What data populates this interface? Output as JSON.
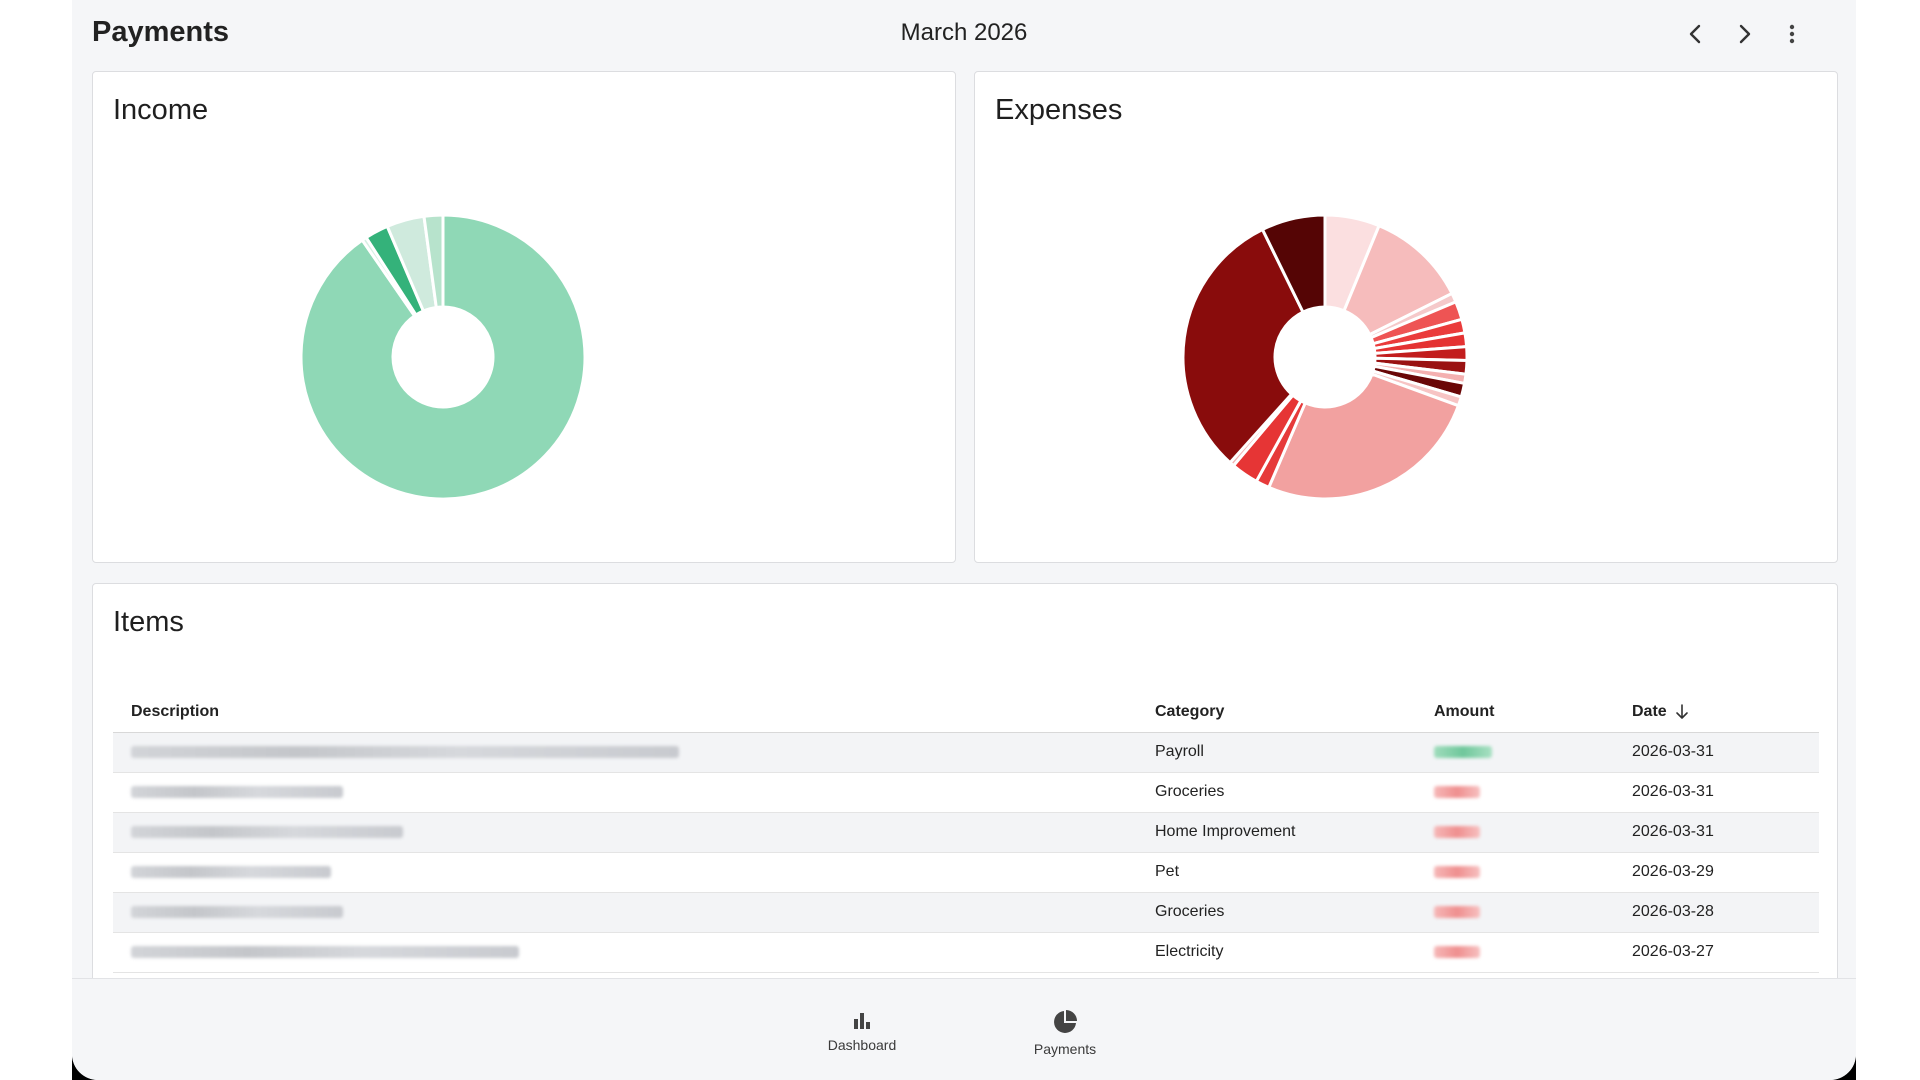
{
  "header": {
    "title": "Payments",
    "month": "March 2026",
    "prev_icon": "chevron-left-icon",
    "next_icon": "chevron-right-icon",
    "more_icon": "more-vert-icon"
  },
  "income": {
    "title": "Income",
    "chart_data": {
      "type": "pie",
      "style": "donut",
      "values": [
        84.5,
        0.5,
        2.5,
        4.0,
        2.0
      ],
      "colors": [
        "#8fd8b6",
        "#d6f0e3",
        "#34b27a",
        "#cfeadd",
        "#b7e3cc"
      ],
      "order": "counter-clockwise-from-right-side"
    }
  },
  "expenses": {
    "title": "Expenses",
    "chart_data": {
      "type": "pie",
      "style": "donut",
      "values": [
        6,
        11,
        1,
        2,
        1.5,
        1.5,
        1.5,
        1.5,
        1,
        1.5,
        1,
        25,
        1.5,
        3,
        0.5,
        30,
        7
      ],
      "colors": [
        "#fbdfe0",
        "#f6bcbc",
        "#f5c9ca",
        "#ee5454",
        "#ea3b3b",
        "#e43232",
        "#c21d1d",
        "#9a1212",
        "#f4b0b0",
        "#6a0606",
        "#f7c4c4",
        "#f2a1a0",
        "#e63a3a",
        "#e63535",
        "#f2b4b4",
        "#890c0c",
        "#550505"
      ]
    }
  },
  "items": {
    "title": "Items",
    "columns": {
      "description": "Description",
      "category": "Category",
      "amount": "Amount",
      "date": "Date"
    },
    "sort_icon": "arrow-down-icon",
    "rows": [
      {
        "category": "Payroll",
        "date": "2026-03-31",
        "type": "income"
      },
      {
        "category": "Groceries",
        "date": "2026-03-31",
        "type": "expense"
      },
      {
        "category": "Home Improvement",
        "date": "2026-03-31",
        "type": "expense"
      },
      {
        "category": "Pet",
        "date": "2026-03-29",
        "type": "expense"
      },
      {
        "category": "Groceries",
        "date": "2026-03-28",
        "type": "expense"
      },
      {
        "category": "Electricity",
        "date": "2026-03-27",
        "type": "expense"
      }
    ]
  },
  "bottom_nav": {
    "dashboard_label": "Dashboard",
    "dashboard_icon": "bar-chart-icon",
    "payments_label": "Payments",
    "payments_icon": "pie-chart-icon"
  },
  "colors": {
    "income_accent": "#34b27a",
    "expense_accent": "#e63535",
    "background": "#f5f6f8"
  }
}
